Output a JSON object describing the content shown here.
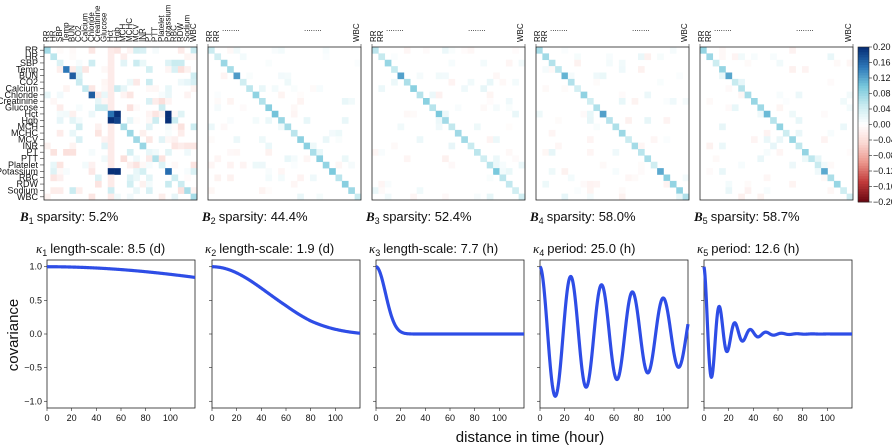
{
  "variables": [
    "RR",
    "HR",
    "SBP",
    "Temp",
    "BUN",
    "CO2",
    "Calcium",
    "Chloride",
    "Creatinine",
    "Glucose",
    "Hct",
    "Hgb",
    "MCH",
    "MCHC",
    "MCV",
    "INR",
    "PT",
    "PTT",
    "Platelet",
    "Potassium",
    "RBC",
    "RDW",
    "Sodium",
    "WBC"
  ],
  "matrices": [
    {
      "sym": "B",
      "sub": "1",
      "label": "sparsity: 5.2%",
      "sparsity": 5.2
    },
    {
      "sym": "B",
      "sub": "2",
      "label": "sparsity: 44.4%",
      "sparsity": 44.4
    },
    {
      "sym": "B",
      "sub": "3",
      "label": "sparsity: 52.4%",
      "sparsity": 52.4
    },
    {
      "sym": "B",
      "sub": "4",
      "label": "sparsity: 58.0%",
      "sparsity": 58.0
    },
    {
      "sym": "B",
      "sub": "5",
      "label": "sparsity: 58.7%",
      "sparsity": 58.7
    }
  ],
  "abbrev": {
    "first": [
      "RR",
      "RR"
    ],
    "dots": "........",
    "last": "WBC"
  },
  "colorbar": {
    "ticks": [
      "0.20",
      "0.16",
      "0.12",
      "0.08",
      "0.04",
      "0.00",
      "−0.04",
      "−0.08",
      "−0.12",
      "−0.16",
      "−0.20"
    ],
    "range": [
      -0.2,
      0.2
    ]
  },
  "chart_data": {
    "type": "line",
    "xlabel": "distance in time (hour)",
    "ylabel": "covariance",
    "xlim": [
      0,
      120
    ],
    "ylim": [
      -1.1,
      1.1
    ],
    "xticks": [
      "0",
      "20",
      "40",
      "60",
      "80",
      "100"
    ],
    "yticks": [
      "1.0",
      "0.5",
      "0.0",
      "−0.5",
      "−1.0"
    ],
    "series": [
      {
        "sym": "κ",
        "sub": "1",
        "label": "length-scale: 8.5 (d)",
        "kind": "se",
        "lengthscale_hours": 204,
        "period_hours": null
      },
      {
        "sym": "κ",
        "sub": "2",
        "label": "length-scale: 1.9 (d)",
        "kind": "se",
        "lengthscale_hours": 45.6,
        "period_hours": null
      },
      {
        "sym": "κ",
        "sub": "3",
        "label": "length-scale: 7.7 (h)",
        "kind": "se",
        "lengthscale_hours": 7.7,
        "period_hours": null
      },
      {
        "sym": "κ",
        "sub": "4",
        "label": "period: 25.0 (h)",
        "kind": "periodic",
        "lengthscale_hours": 45,
        "period_hours": 25.0
      },
      {
        "sym": "κ",
        "sub": "5",
        "label": "period: 12.6 (h)",
        "kind": "periodic",
        "lengthscale_hours": 10,
        "period_hours": 12.6
      }
    ]
  }
}
